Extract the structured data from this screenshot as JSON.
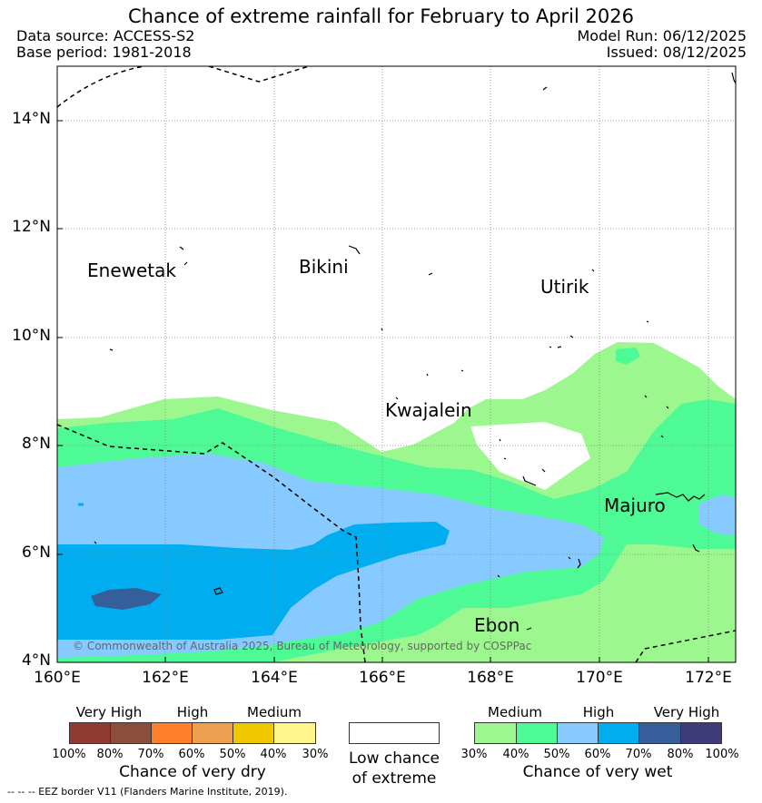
{
  "title": "Chance of extreme rainfall for February to April 2026",
  "data_source": "Data source: ACCESS-S2",
  "base_period": "Base period: 1981-2018",
  "model_run": "Model Run: 06/12/2025",
  "issued": "Issued: 08/12/2025",
  "lat_labels": [
    "14°N",
    "12°N",
    "10°N",
    "8°N",
    "6°N",
    "4°N"
  ],
  "lon_labels": [
    "160°E",
    "162°E",
    "164°E",
    "166°E",
    "168°E",
    "170°E",
    "172°E"
  ],
  "places": {
    "enewetak": "Enewetak",
    "bikini": "Bikini",
    "utirik": "Utirik",
    "kwajalein": "Kwajalein",
    "majuro": "Majuro",
    "ebon": "Ebon"
  },
  "copyright": "© Commonwealth of Australia 2025, Bureau of Meteorology, supported by COSPPac",
  "legend_dry": {
    "categories": [
      "Very High",
      "High",
      "Medium"
    ],
    "ticks": [
      "100%",
      "80%",
      "70%",
      "60%",
      "50%",
      "40%",
      "30%"
    ],
    "colors": [
      "#8f3a32",
      "#8b4e3c",
      "#ff7f2a",
      "#eda050",
      "#f0c800",
      "#fff58a"
    ],
    "label": "Chance of very dry"
  },
  "legend_none": {
    "line1": "Low chance",
    "line2": "of extreme"
  },
  "legend_wet": {
    "categories": [
      "Medium",
      "High",
      "Very High"
    ],
    "ticks": [
      "30%",
      "40%",
      "50%",
      "60%",
      "70%",
      "80%",
      "100%"
    ],
    "colors": [
      "#9cf88e",
      "#4dfa96",
      "#87caff",
      "#00aeef",
      "#365e9a",
      "#3f3a78"
    ],
    "label": "Chance of very wet"
  },
  "eez_note": "--  --  -- EEZ border V11 (Flanders Marine Institute, 2019)."
}
